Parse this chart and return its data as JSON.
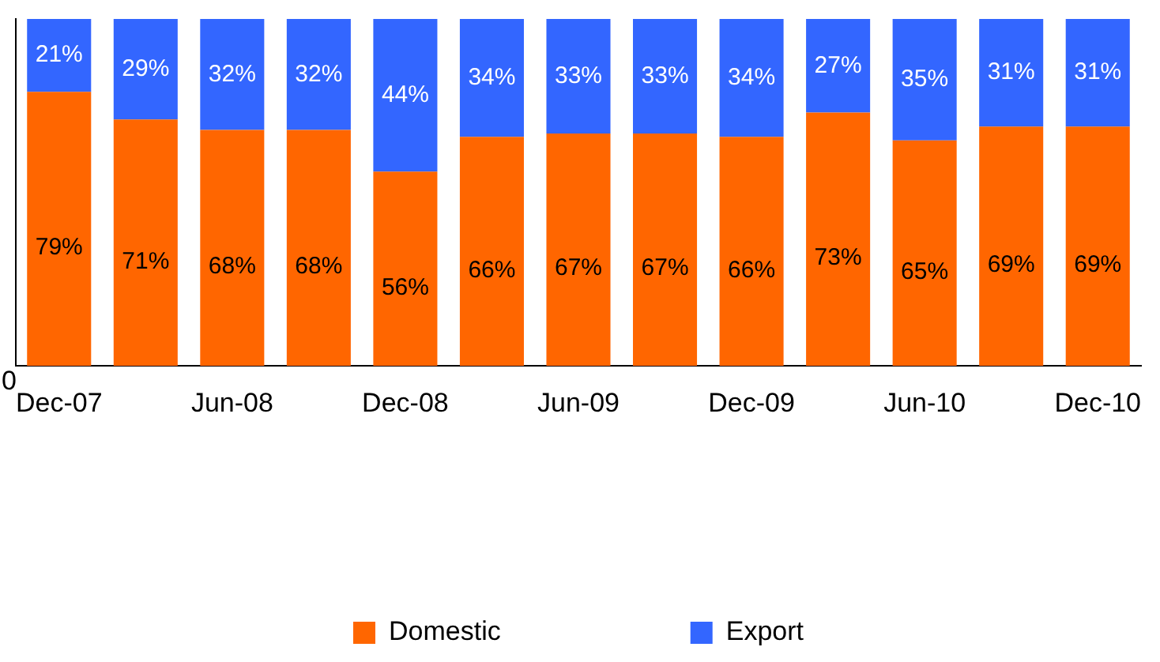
{
  "chart_data": {
    "type": "bar",
    "stacked": true,
    "categories": [
      "Dec-07",
      null,
      "Jun-08",
      null,
      "Dec-08",
      null,
      "Jun-09",
      null,
      "Dec-09",
      null,
      "Jun-10",
      null,
      "Dec-10"
    ],
    "series": [
      {
        "name": "Domestic",
        "color": "#ff6600",
        "values": [
          79,
          71,
          68,
          68,
          56,
          66,
          67,
          67,
          66,
          73,
          65,
          69,
          69
        ],
        "value_labels": [
          "79%",
          "71%",
          "68%",
          "68%",
          "56%",
          "66%",
          "67%",
          "67%",
          "66%",
          "73%",
          "65%",
          "69%",
          "69%"
        ]
      },
      {
        "name": "Export",
        "color": "#3366ff",
        "values": [
          21,
          29,
          32,
          32,
          44,
          34,
          33,
          33,
          34,
          27,
          35,
          31,
          31
        ],
        "value_labels": [
          "21%",
          "29%",
          "32%",
          "32%",
          "44%",
          "34%",
          "33%",
          "33%",
          "34%",
          "27%",
          "35%",
          "31%",
          "31%"
        ]
      }
    ],
    "ylim": [
      0,
      100
    ],
    "tick_labels": "x",
    "annotations": [
      "0"
    ],
    "grid": false,
    "legend": "bottom"
  }
}
